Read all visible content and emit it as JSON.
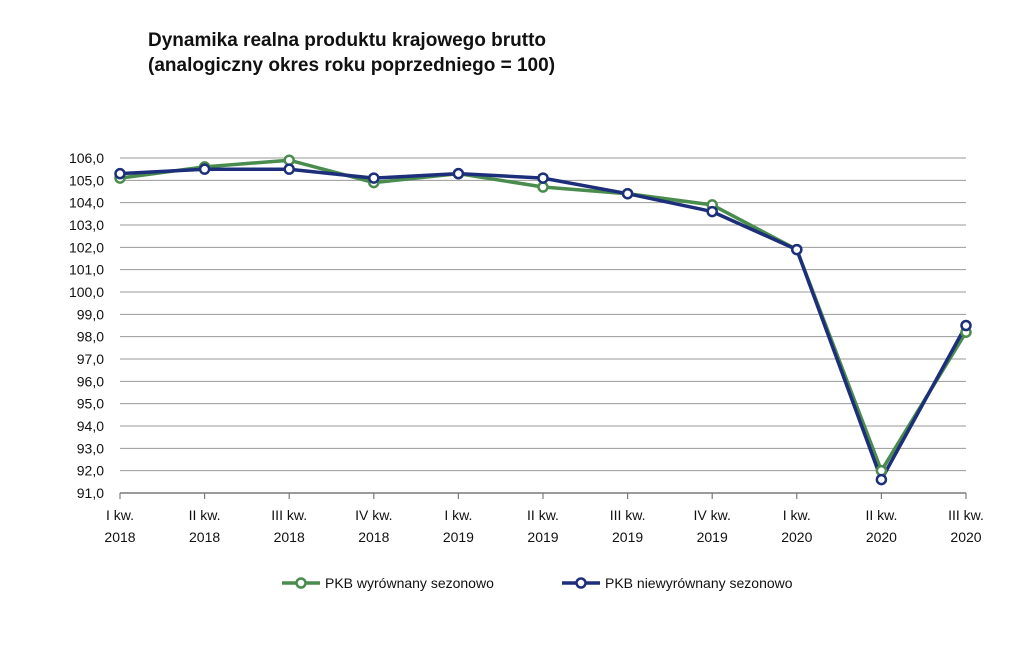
{
  "chart_data": {
    "type": "line",
    "title": "Dynamika realna produktu krajowego brutto",
    "subtitle": "(analogiczny okres roku poprzedniego = 100)",
    "categories": [
      [
        "I kw.",
        "2018"
      ],
      [
        "II kw.",
        "2018"
      ],
      [
        "III kw.",
        "2018"
      ],
      [
        "IV kw.",
        "2018"
      ],
      [
        "I kw.",
        "2019"
      ],
      [
        "II kw.",
        "2019"
      ],
      [
        "III kw.",
        "2019"
      ],
      [
        "IV kw.",
        "2019"
      ],
      [
        "I kw.",
        "2020"
      ],
      [
        "II kw.",
        "2020"
      ],
      [
        "III kw.",
        "2020"
      ]
    ],
    "series": [
      {
        "name": "PKB wyrównany sezonowo",
        "color": "#4a8c4e",
        "values": [
          105.1,
          105.6,
          105.9,
          104.9,
          105.3,
          104.7,
          104.4,
          103.9,
          101.9,
          92.0,
          98.2
        ]
      },
      {
        "name": "PKB niewyrównany sezonowo",
        "color": "#1d2f7a",
        "values": [
          105.3,
          105.5,
          105.5,
          105.1,
          105.3,
          105.1,
          104.4,
          103.6,
          101.9,
          91.6,
          98.5
        ]
      }
    ],
    "ylim": [
      91.0,
      106.0
    ],
    "yticks": [
      "91,0",
      "92,0",
      "93,0",
      "94,0",
      "95,0",
      "96,0",
      "97,0",
      "98,0",
      "99,0",
      "100,0",
      "101,0",
      "102,0",
      "103,0",
      "104,0",
      "105,0",
      "106,0"
    ],
    "grid": true,
    "legend": "bottom-center"
  }
}
